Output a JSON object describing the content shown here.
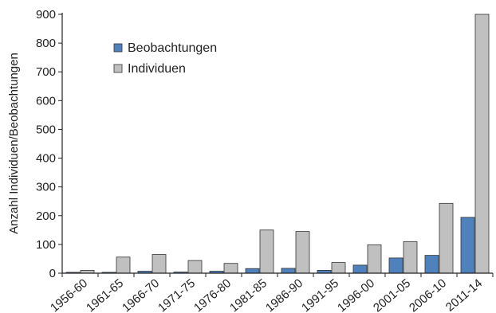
{
  "chart_data": {
    "type": "bar",
    "categories": [
      "1956-60",
      "1961-65",
      "1966-70",
      "1971-75",
      "1976-80",
      "1981-85",
      "1986-90",
      "1991-95",
      "1996-00",
      "2001-05",
      "2006-10",
      "2011-14"
    ],
    "series": [
      {
        "name": "Beobachtungen",
        "color": "#4f81bd",
        "values": [
          3,
          3,
          7,
          4,
          7,
          16,
          17,
          10,
          28,
          53,
          62,
          194
        ]
      },
      {
        "name": "Individuen",
        "color": "#c0c0c0",
        "values": [
          10,
          56,
          65,
          44,
          34,
          150,
          145,
          37,
          99,
          110,
          243,
          900
        ]
      }
    ],
    "ylabel": "Anzahl Individuen/Beobachtungen",
    "xlabel": "",
    "ylim": [
      0,
      900
    ],
    "yticks": [
      0,
      100,
      200,
      300,
      400,
      500,
      600,
      700,
      800,
      900
    ],
    "grid": false,
    "legend_position": "top-left"
  }
}
